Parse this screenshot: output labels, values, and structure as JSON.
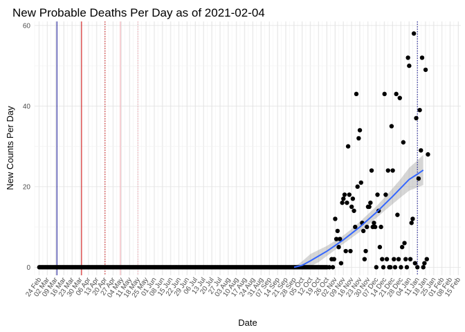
{
  "chart_data": {
    "type": "scatter",
    "title": "New Probable Deaths Per Day as of 2021-02-04",
    "xlabel": "Date",
    "ylabel": "New Counts Per Day",
    "x_range": [
      "2020-02-20",
      "2021-02-17"
    ],
    "ylim": [
      -2,
      61
    ],
    "y_ticks": [
      0,
      20,
      40,
      60
    ],
    "x_tick_dates": [
      "2020-02-24",
      "2020-03-02",
      "2020-03-09",
      "2020-03-16",
      "2020-03-23",
      "2020-03-30",
      "2020-04-06",
      "2020-04-13",
      "2020-04-20",
      "2020-04-27",
      "2020-05-04",
      "2020-05-11",
      "2020-05-18",
      "2020-05-25",
      "2020-06-01",
      "2020-06-08",
      "2020-06-15",
      "2020-06-22",
      "2020-06-29",
      "2020-07-06",
      "2020-07-13",
      "2020-07-20",
      "2020-07-27",
      "2020-08-03",
      "2020-08-10",
      "2020-08-17",
      "2020-08-24",
      "2020-08-31",
      "2020-09-07",
      "2020-09-14",
      "2020-09-21",
      "2020-09-28",
      "2020-10-05",
      "2020-10-12",
      "2020-10-19",
      "2020-10-26",
      "2020-11-02",
      "2020-11-09",
      "2020-11-16",
      "2020-11-23",
      "2020-11-30",
      "2020-12-07",
      "2020-12-14",
      "2020-12-21",
      "2020-12-28",
      "2021-01-04",
      "2021-01-11",
      "2021-01-18",
      "2021-01-25",
      "2021-02-01",
      "2021-02-08",
      "2021-02-15"
    ],
    "x_tick_labels": [
      "24 Feb",
      "02 Mar",
      "09 Mar",
      "16 Mar",
      "23 Mar",
      "30 Mar",
      "06 Apr",
      "13 Apr",
      "20 Apr",
      "27 Apr",
      "04 May",
      "11 May",
      "18 May",
      "25 May",
      "01 Jun",
      "08 Jun",
      "15 Jun",
      "22 Jun",
      "29 Jun",
      "06 Jul",
      "13 Jul",
      "20 Jul",
      "27 Jul",
      "03 Aug",
      "10 Aug",
      "17 Aug",
      "24 Aug",
      "31 Aug",
      "07 Sep",
      "14 Sep",
      "21 Sep",
      "28 Sep",
      "05 Oct",
      "12 Oct",
      "19 Oct",
      "26 Oct",
      "02 Nov",
      "09 Nov",
      "16 Nov",
      "23 Nov",
      "30 Nov",
      "07 Dec",
      "14 Dec",
      "21 Dec",
      "28 Dec",
      "04 Jan",
      "11 Jan",
      "18 Jan",
      "25 Jan",
      "01 Feb",
      "08 Feb",
      "15 Feb"
    ],
    "zero_series": {
      "start": "2020-02-24",
      "end": "2020-10-25",
      "value": 0
    },
    "points": [
      {
        "x": "2020-10-26",
        "y": 0
      },
      {
        "x": "2020-10-28",
        "y": 0
      },
      {
        "x": "2020-10-30",
        "y": 2
      },
      {
        "x": "2020-10-31",
        "y": 0
      },
      {
        "x": "2020-11-01",
        "y": 2
      },
      {
        "x": "2020-11-02",
        "y": 12
      },
      {
        "x": "2020-11-03",
        "y": 7
      },
      {
        "x": "2020-11-04",
        "y": 9
      },
      {
        "x": "2020-11-05",
        "y": 5
      },
      {
        "x": "2020-11-06",
        "y": 7
      },
      {
        "x": "2020-11-07",
        "y": 1
      },
      {
        "x": "2020-11-08",
        "y": 16
      },
      {
        "x": "2020-11-09",
        "y": 17
      },
      {
        "x": "2020-11-10",
        "y": 18
      },
      {
        "x": "2020-11-11",
        "y": 4
      },
      {
        "x": "2020-11-12",
        "y": 16
      },
      {
        "x": "2020-11-13",
        "y": 30
      },
      {
        "x": "2020-11-14",
        "y": 18
      },
      {
        "x": "2020-11-15",
        "y": 4
      },
      {
        "x": "2020-11-16",
        "y": 15
      },
      {
        "x": "2020-11-17",
        "y": 17
      },
      {
        "x": "2020-11-18",
        "y": 14
      },
      {
        "x": "2020-11-19",
        "y": 10
      },
      {
        "x": "2020-11-20",
        "y": 43
      },
      {
        "x": "2020-11-21",
        "y": 20
      },
      {
        "x": "2020-11-22",
        "y": 32
      },
      {
        "x": "2020-11-23",
        "y": 34
      },
      {
        "x": "2020-11-24",
        "y": 21
      },
      {
        "x": "2020-11-25",
        "y": 11
      },
      {
        "x": "2020-11-26",
        "y": 9
      },
      {
        "x": "2020-11-27",
        "y": 2
      },
      {
        "x": "2020-11-28",
        "y": 4
      },
      {
        "x": "2020-11-29",
        "y": 10
      },
      {
        "x": "2020-11-30",
        "y": 15
      },
      {
        "x": "2020-12-01",
        "y": 15
      },
      {
        "x": "2020-12-02",
        "y": 16
      },
      {
        "x": "2020-12-03",
        "y": 24
      },
      {
        "x": "2020-12-04",
        "y": 10
      },
      {
        "x": "2020-12-05",
        "y": 11
      },
      {
        "x": "2020-12-06",
        "y": 10
      },
      {
        "x": "2020-12-07",
        "y": 0
      },
      {
        "x": "2020-12-08",
        "y": 18
      },
      {
        "x": "2020-12-09",
        "y": 14
      },
      {
        "x": "2020-12-10",
        "y": 5
      },
      {
        "x": "2020-12-11",
        "y": 10
      },
      {
        "x": "2020-12-12",
        "y": 2
      },
      {
        "x": "2020-12-13",
        "y": 0
      },
      {
        "x": "2020-12-14",
        "y": 43
      },
      {
        "x": "2020-12-15",
        "y": 18
      },
      {
        "x": "2020-12-16",
        "y": 2
      },
      {
        "x": "2020-12-17",
        "y": 24
      },
      {
        "x": "2020-12-18",
        "y": 0
      },
      {
        "x": "2020-12-19",
        "y": 0
      },
      {
        "x": "2020-12-20",
        "y": 35
      },
      {
        "x": "2020-12-21",
        "y": 24
      },
      {
        "x": "2020-12-22",
        "y": 2
      },
      {
        "x": "2020-12-23",
        "y": 0
      },
      {
        "x": "2020-12-24",
        "y": 43
      },
      {
        "x": "2020-12-25",
        "y": 13
      },
      {
        "x": "2020-12-26",
        "y": 2
      },
      {
        "x": "2020-12-27",
        "y": 42
      },
      {
        "x": "2020-12-28",
        "y": 0
      },
      {
        "x": "2020-12-29",
        "y": 5
      },
      {
        "x": "2020-12-30",
        "y": 31
      },
      {
        "x": "2020-12-31",
        "y": 6
      },
      {
        "x": "2021-01-01",
        "y": 2
      },
      {
        "x": "2021-01-02",
        "y": 0
      },
      {
        "x": "2021-01-03",
        "y": 52
      },
      {
        "x": "2021-01-04",
        "y": 50
      },
      {
        "x": "2021-01-05",
        "y": 2
      },
      {
        "x": "2021-01-06",
        "y": 11
      },
      {
        "x": "2021-01-07",
        "y": 12
      },
      {
        "x": "2021-01-08",
        "y": 58
      },
      {
        "x": "2021-01-09",
        "y": 1
      },
      {
        "x": "2021-01-10",
        "y": 37
      },
      {
        "x": "2021-01-11",
        "y": 0
      },
      {
        "x": "2021-01-12",
        "y": 22
      },
      {
        "x": "2021-01-13",
        "y": 39
      },
      {
        "x": "2021-01-14",
        "y": 29
      },
      {
        "x": "2021-01-15",
        "y": 52
      },
      {
        "x": "2021-01-16",
        "y": 0
      },
      {
        "x": "2021-01-17",
        "y": 1
      },
      {
        "x": "2021-01-18",
        "y": 49
      },
      {
        "x": "2021-01-19",
        "y": 2
      },
      {
        "x": "2021-01-20",
        "y": 28
      }
    ],
    "trend": {
      "color": "#3366ff",
      "band_color": "#999999",
      "points": [
        {
          "x": "2020-09-28",
          "y": 0.0,
          "lo": 0.0,
          "hi": 0.0
        },
        {
          "x": "2020-10-05",
          "y": 0.5,
          "lo": -0.3,
          "hi": 1.5
        },
        {
          "x": "2020-10-12",
          "y": 1.6,
          "lo": 0.2,
          "hi": 3.3
        },
        {
          "x": "2020-10-19",
          "y": 2.8,
          "lo": 1.3,
          "hi": 4.3
        },
        {
          "x": "2020-10-26",
          "y": 4.0,
          "lo": 2.8,
          "hi": 5.3
        },
        {
          "x": "2020-11-02",
          "y": 5.4,
          "lo": 4.3,
          "hi": 6.6
        },
        {
          "x": "2020-11-09",
          "y": 6.8,
          "lo": 5.8,
          "hi": 7.9
        },
        {
          "x": "2020-11-16",
          "y": 8.4,
          "lo": 7.3,
          "hi": 9.5
        },
        {
          "x": "2020-11-23",
          "y": 10.0,
          "lo": 8.8,
          "hi": 11.3
        },
        {
          "x": "2020-11-30",
          "y": 11.8,
          "lo": 10.5,
          "hi": 13.2
        },
        {
          "x": "2020-12-07",
          "y": 13.6,
          "lo": 12.2,
          "hi": 15.1
        },
        {
          "x": "2020-12-14",
          "y": 15.6,
          "lo": 14.0,
          "hi": 17.3
        },
        {
          "x": "2020-12-21",
          "y": 17.6,
          "lo": 15.7,
          "hi": 19.6
        },
        {
          "x": "2020-12-28",
          "y": 19.7,
          "lo": 17.4,
          "hi": 22.0
        },
        {
          "x": "2021-01-04",
          "y": 21.8,
          "lo": 19.0,
          "hi": 24.7
        },
        {
          "x": "2021-01-11",
          "y": 23.1,
          "lo": 19.8,
          "hi": 26.5
        },
        {
          "x": "2021-01-16",
          "y": 24.1,
          "lo": 20.4,
          "hi": 27.9
        }
      ]
    },
    "reference_lines": [
      {
        "x": "2020-03-10",
        "color": "#00008b",
        "style": "solid"
      },
      {
        "x": "2020-03-31",
        "color": "#cc0000",
        "style": "solid"
      },
      {
        "x": "2020-04-20",
        "color": "#cc0000",
        "style": "dotted"
      },
      {
        "x": "2020-05-03",
        "color": "#f4a6b0",
        "style": "solid"
      },
      {
        "x": "2020-05-18",
        "color": "#f4a6b0",
        "style": "dotted"
      },
      {
        "x": "2021-01-11",
        "color": "#00008b",
        "style": "dotted"
      }
    ],
    "point_color": "#000000",
    "grid": true,
    "legend": "none"
  }
}
